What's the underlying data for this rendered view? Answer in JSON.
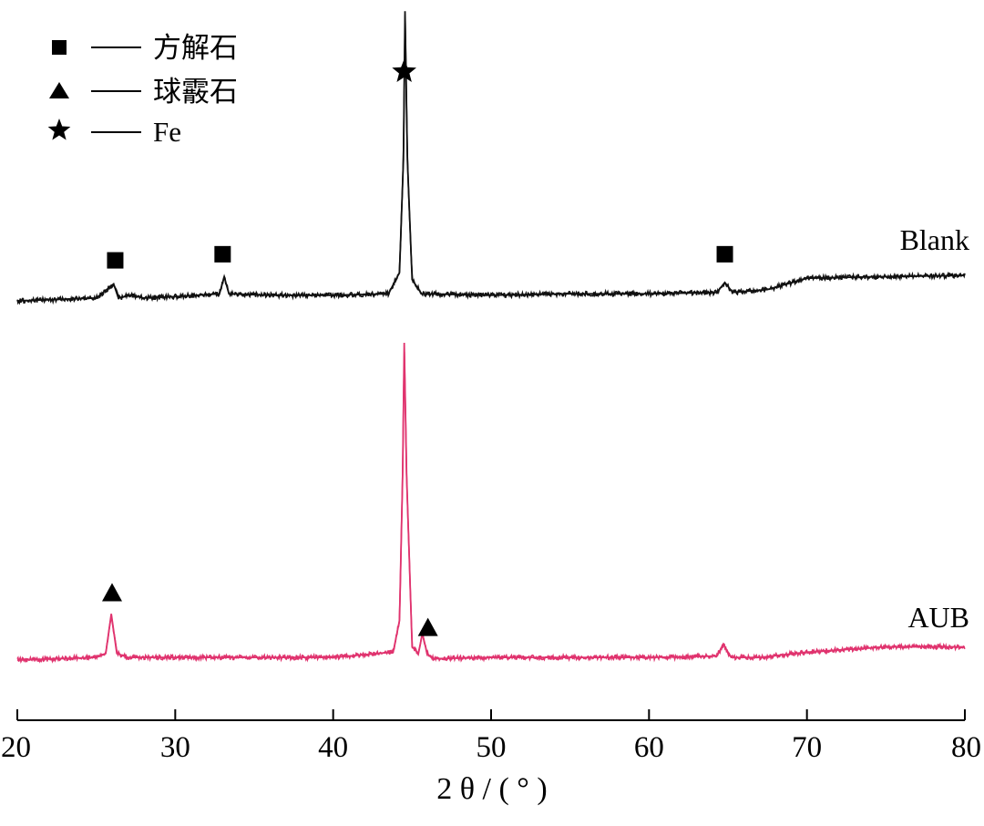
{
  "chart_data": {
    "type": "line",
    "xlabel": "2 θ / ( ° )",
    "xlim": [
      20,
      80
    ],
    "x_ticks": [
      "20",
      "30",
      "40",
      "50",
      "60",
      "70",
      "80"
    ],
    "series": [
      {
        "name": "Blank",
        "color": "#111111",
        "baseline": 0.0,
        "points": [
          [
            20,
            0.0
          ],
          [
            25,
            0.02
          ],
          [
            26.1,
            0.12
          ],
          [
            26.4,
            0.02
          ],
          [
            27.2,
            0.04
          ],
          [
            28,
            0.02
          ],
          [
            30,
            0.03
          ],
          [
            32.8,
            0.05
          ],
          [
            33.1,
            0.17
          ],
          [
            33.4,
            0.05
          ],
          [
            36,
            0.04
          ],
          [
            40,
            0.04
          ],
          [
            43.5,
            0.05
          ],
          [
            44.2,
            0.2
          ],
          [
            44.45,
            1.0
          ],
          [
            44.55,
            2.05
          ],
          [
            44.7,
            1.0
          ],
          [
            45,
            0.15
          ],
          [
            45.6,
            0.05
          ],
          [
            50,
            0.04
          ],
          [
            55,
            0.05
          ],
          [
            60,
            0.05
          ],
          [
            64.3,
            0.06
          ],
          [
            64.8,
            0.13
          ],
          [
            65.3,
            0.06
          ],
          [
            67.5,
            0.08
          ],
          [
            70,
            0.16
          ],
          [
            74,
            0.17
          ],
          [
            80,
            0.18
          ]
        ]
      },
      {
        "name": "AUB",
        "color": "#e0336e",
        "baseline": 0.0,
        "points": [
          [
            20,
            0.0
          ],
          [
            25,
            0.02
          ],
          [
            25.6,
            0.05
          ],
          [
            25.95,
            0.35
          ],
          [
            26.3,
            0.05
          ],
          [
            27,
            0.02
          ],
          [
            30,
            0.02
          ],
          [
            35,
            0.02
          ],
          [
            40,
            0.02
          ],
          [
            43.8,
            0.06
          ],
          [
            44.2,
            0.3
          ],
          [
            44.4,
            1.4
          ],
          [
            44.5,
            2.4
          ],
          [
            44.65,
            1.4
          ],
          [
            45,
            0.1
          ],
          [
            45.4,
            0.05
          ],
          [
            45.65,
            0.2
          ],
          [
            45.95,
            0.05
          ],
          [
            46.3,
            0.01
          ],
          [
            50,
            0.02
          ],
          [
            55,
            0.02
          ],
          [
            60,
            0.02
          ],
          [
            64.3,
            0.03
          ],
          [
            64.7,
            0.12
          ],
          [
            65.2,
            0.02
          ],
          [
            67,
            0.02
          ],
          [
            70,
            0.06
          ],
          [
            75,
            0.1
          ],
          [
            80,
            0.1
          ]
        ]
      }
    ],
    "markers": [
      {
        "series": "Blank",
        "x": 26.2,
        "shape": "square"
      },
      {
        "series": "Blank",
        "x": 33.0,
        "shape": "square"
      },
      {
        "series": "Blank",
        "x": 64.8,
        "shape": "square"
      },
      {
        "series": "Blank",
        "x": 44.5,
        "shape": "star"
      },
      {
        "series": "AUB",
        "x": 26.0,
        "shape": "triangle"
      },
      {
        "series": "AUB",
        "x": 46.0,
        "shape": "triangle"
      }
    ],
    "legend": {
      "placement": "top-left",
      "entries": [
        {
          "shape": "square",
          "label": "方解石"
        },
        {
          "shape": "triangle",
          "label": "球霰石"
        },
        {
          "shape": "star",
          "label": "Fe"
        }
      ]
    },
    "grid": false
  }
}
